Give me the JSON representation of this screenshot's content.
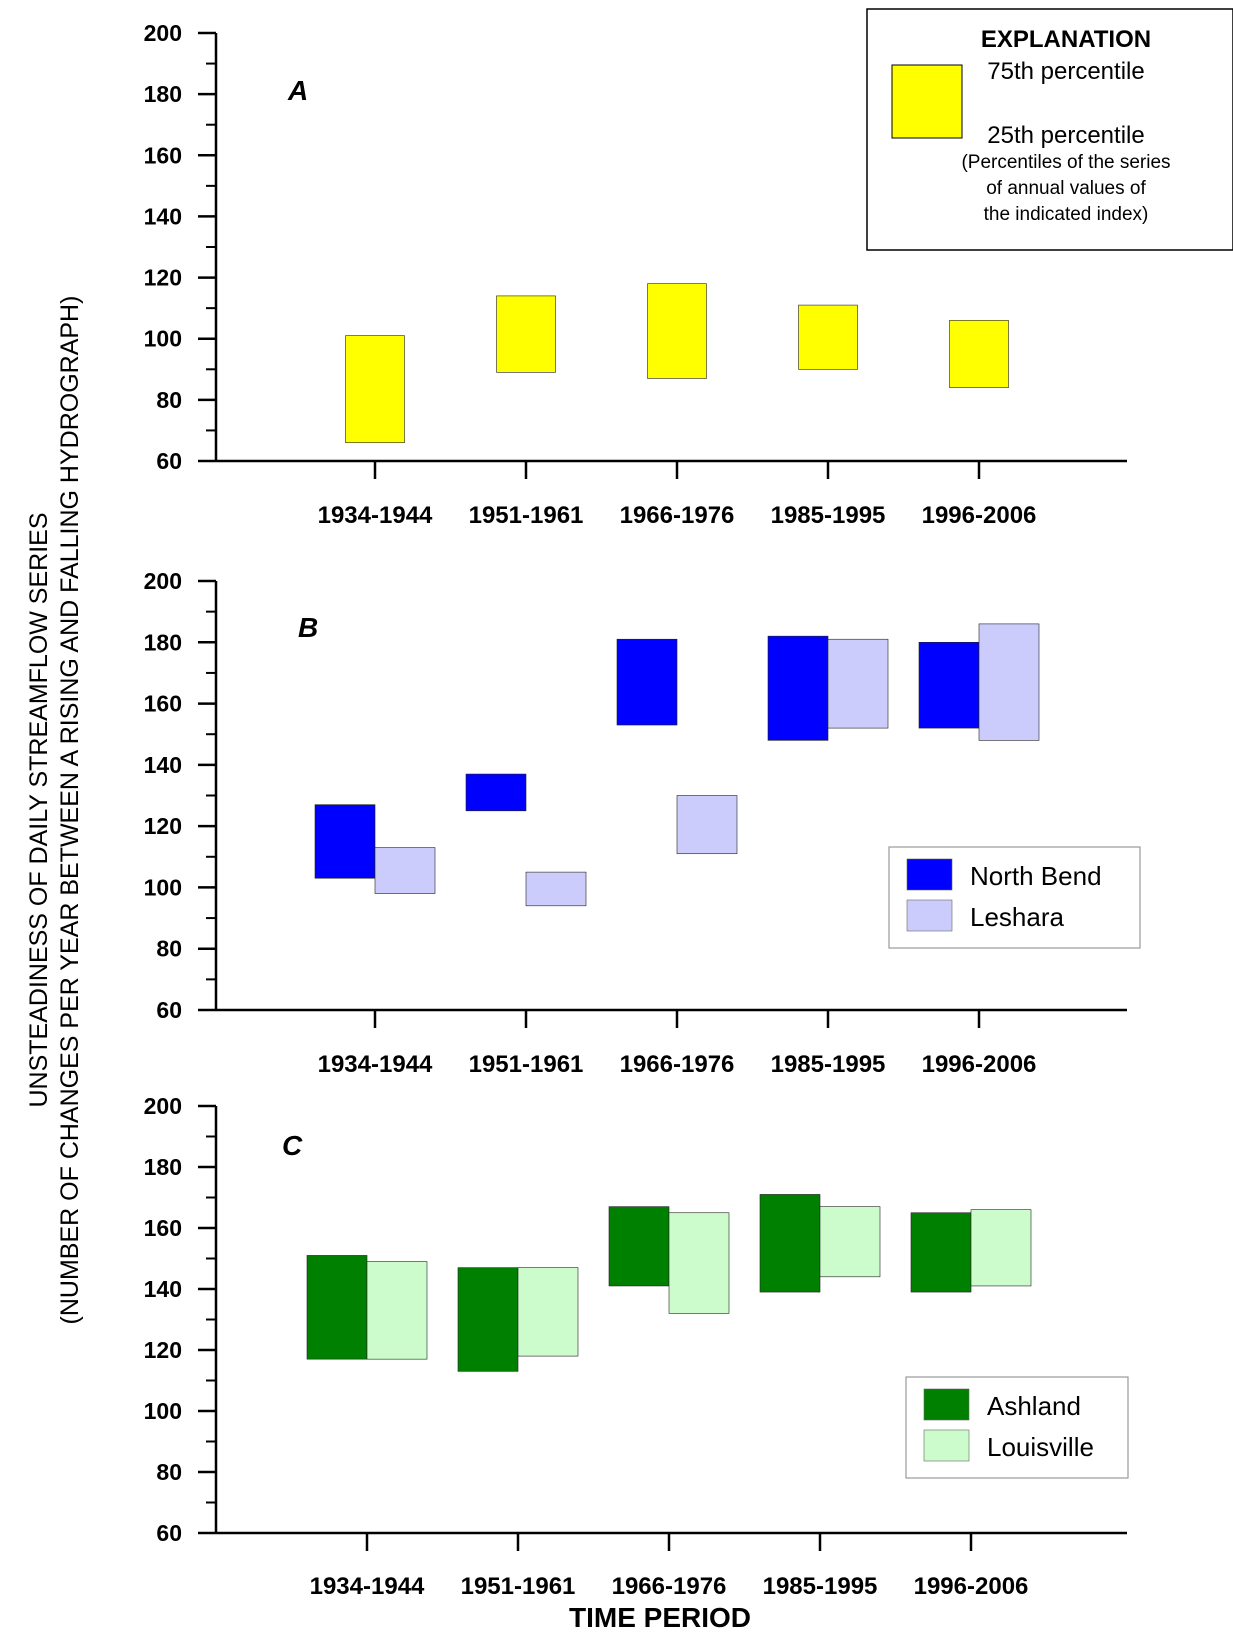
{
  "figure": {
    "y_axis_label_line1": "UNSTEADINESS OF DAILY STREAMFLOW SERIES",
    "y_axis_label_line2": "(NUMBER OF CHANGES PER YEAR BETWEEN A RISING AND FALLING HYDROGRAPH)",
    "x_axis_title": "TIME PERIOD"
  },
  "explanation": {
    "title": "EXPLANATION",
    "upper_label": "75th percentile",
    "lower_label": "25th percentile",
    "note_line1": "(Percentiles of the series",
    "note_line2": "of annual values of",
    "note_line3": "the indicated index)",
    "box_color": "#ffff00"
  },
  "chart_data": [
    {
      "type": "bar",
      "panel_label": "A",
      "categories": [
        "1934-1944",
        "1951-1961",
        "1966-1976",
        "1985-1995",
        "1996-2006"
      ],
      "ylim": [
        60,
        200
      ],
      "y_ticks": [
        "60",
        "80",
        "100",
        "120",
        "140",
        "160",
        "180",
        "200"
      ],
      "series": [
        {
          "color": "#ffff00",
          "p25": [
            66,
            89,
            87,
            90,
            84
          ],
          "p75": [
            101,
            114,
            118,
            111,
            106
          ]
        }
      ],
      "legend": null
    },
    {
      "type": "bar",
      "panel_label": "B",
      "categories": [
        "1934-1944",
        "1951-1961",
        "1966-1976",
        "1985-1995",
        "1996-2006"
      ],
      "ylim": [
        60,
        200
      ],
      "y_ticks": [
        "60",
        "80",
        "100",
        "120",
        "140",
        "160",
        "180",
        "200"
      ],
      "series": [
        {
          "name": "North Bend",
          "color": "#0000ff",
          "p25": [
            103,
            125,
            153,
            148,
            152
          ],
          "p75": [
            127,
            137,
            181,
            182,
            180
          ]
        },
        {
          "name": "Leshara",
          "color": "#ccccfc",
          "p25": [
            98,
            94,
            111,
            152,
            148
          ],
          "p75": [
            113,
            105,
            130,
            181,
            186
          ]
        }
      ],
      "legend": "right"
    },
    {
      "type": "bar",
      "panel_label": "C",
      "categories": [
        "1934-1944",
        "1951-1961",
        "1966-1976",
        "1985-1995",
        "1996-2006"
      ],
      "ylim": [
        60,
        200
      ],
      "y_ticks": [
        "60",
        "80",
        "100",
        "120",
        "140",
        "160",
        "180",
        "200"
      ],
      "series": [
        {
          "name": "Ashland",
          "color": "#008000",
          "p25": [
            117,
            113,
            141,
            139,
            139
          ],
          "p75": [
            151,
            147,
            167,
            171,
            165
          ]
        },
        {
          "name": "Louisville",
          "color": "#ccfccc",
          "p25": [
            117,
            118,
            132,
            144,
            141
          ],
          "p75": [
            149,
            147,
            165,
            167,
            166
          ]
        }
      ],
      "legend": "bottom-right"
    }
  ]
}
